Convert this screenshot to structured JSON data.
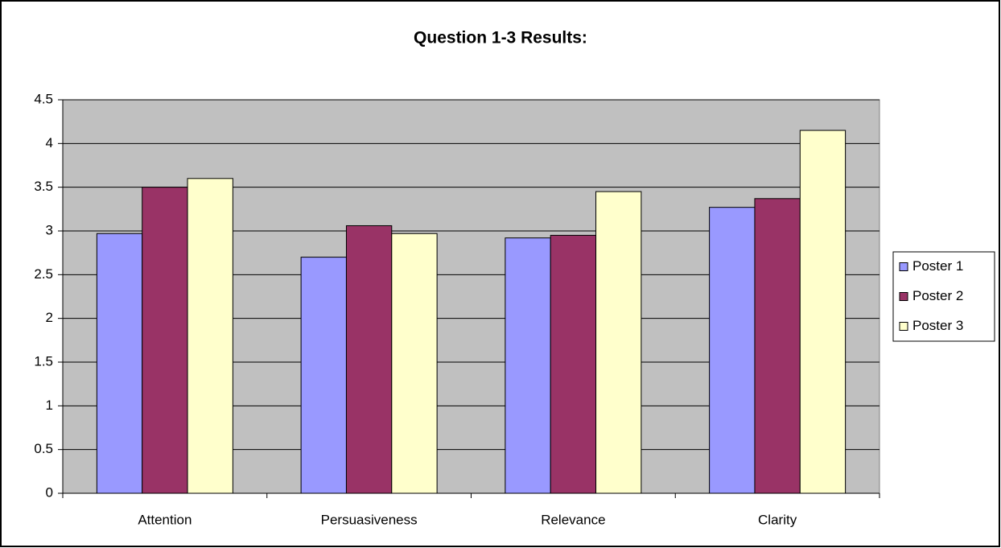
{
  "chart_data": {
    "type": "bar",
    "title": "Question 1-3 Results:",
    "categories": [
      "Attention",
      "Persuasiveness",
      "Relevance",
      "Clarity"
    ],
    "series": [
      {
        "name": "Poster 1",
        "color": "#9999ff",
        "values": [
          2.97,
          2.7,
          2.92,
          3.27
        ]
      },
      {
        "name": "Poster 2",
        "color": "#993366",
        "values": [
          3.5,
          3.06,
          2.95,
          3.37
        ]
      },
      {
        "name": "Poster 3",
        "color": "#ffffcc",
        "values": [
          3.6,
          2.97,
          3.45,
          4.15
        ]
      }
    ],
    "ylim": [
      0,
      4.5
    ],
    "yticks": [
      0,
      0.5,
      1,
      1.5,
      2,
      2.5,
      3,
      3.5,
      4,
      4.5
    ],
    "grid": true,
    "legend": "right"
  }
}
